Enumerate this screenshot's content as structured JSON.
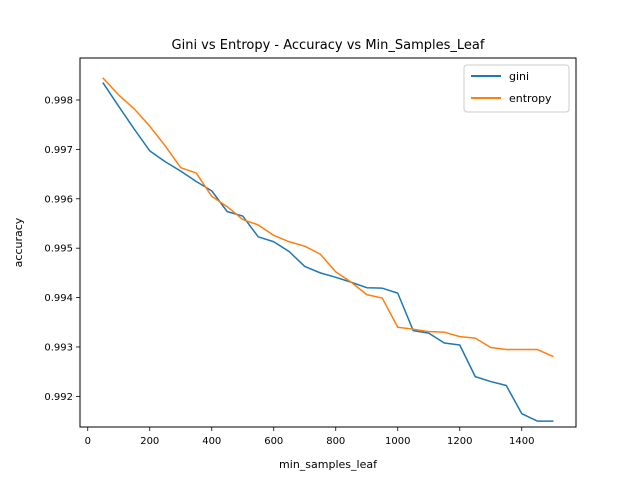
{
  "chart_data": {
    "type": "line",
    "title": "Gini vs Entropy - Accuracy vs Min_Samples_Leaf",
    "xlabel": "min_samples_leaf",
    "ylabel": "accuracy",
    "xlim": [
      -25,
      1575
    ],
    "ylim": [
      0.99138,
      0.99885
    ],
    "xticks": [
      0,
      200,
      400,
      600,
      800,
      1000,
      1200,
      1400
    ],
    "yticks": [
      0.992,
      0.993,
      0.994,
      0.995,
      0.996,
      0.997,
      0.998
    ],
    "grid": false,
    "legend_position": "top-right",
    "x": [
      50,
      100,
      150,
      200,
      250,
      300,
      350,
      400,
      450,
      500,
      550,
      600,
      650,
      700,
      750,
      800,
      850,
      900,
      950,
      1000,
      1050,
      1100,
      1150,
      1200,
      1250,
      1300,
      1350,
      1400,
      1450,
      1500
    ],
    "series": [
      {
        "name": "gini",
        "color": "#1f77b4",
        "values": [
          0.99834,
          0.99787,
          0.99741,
          0.99697,
          0.99675,
          0.99656,
          0.99635,
          0.99616,
          0.99574,
          0.99565,
          0.99523,
          0.99513,
          0.99493,
          0.99463,
          0.9945,
          0.99441,
          0.99431,
          0.9942,
          0.99419,
          0.99409,
          0.99333,
          0.99328,
          0.99308,
          0.99304,
          0.9924,
          0.9923,
          0.99222,
          0.99165,
          0.9915,
          0.9915
        ]
      },
      {
        "name": "entropy",
        "color": "#ff7f0e",
        "values": [
          0.99844,
          0.9981,
          0.99782,
          0.99747,
          0.99707,
          0.99663,
          0.99652,
          0.99605,
          0.99584,
          0.99558,
          0.99547,
          0.99526,
          0.99513,
          0.99504,
          0.99488,
          0.99452,
          0.99431,
          0.99406,
          0.99399,
          0.9934,
          0.99336,
          0.99331,
          0.9933,
          0.99321,
          0.99318,
          0.99299,
          0.99295,
          0.99295,
          0.99295,
          0.99281
        ]
      }
    ]
  }
}
